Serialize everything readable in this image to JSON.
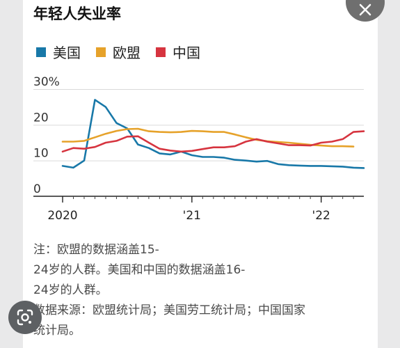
{
  "title": "年轻人失业率",
  "legend": [
    {
      "label": "美国",
      "color": "#1878a8"
    },
    {
      "label": "欧盟",
      "color": "#e6a22a"
    },
    {
      "label": "中国",
      "color": "#d6343f"
    }
  ],
  "notes": {
    "line1": "注：欧盟的数据涵盖15-",
    "line2": "24岁的人群。美国和中国的数据涵盖16-",
    "line3": "24岁的人群。",
    "line4": "数据来源：欧盟统计局；美国劳工统计局；中国国家",
    "line5": "统计局。"
  },
  "icons": {
    "close": "close-icon",
    "lens": "google-lens-icon"
  },
  "chart_data": {
    "type": "line",
    "title": "年轻人失业率",
    "ylim": [
      0,
      30
    ],
    "yticks": [
      {
        "value": 30,
        "label": "30%"
      },
      {
        "value": 20,
        "label": "20"
      },
      {
        "value": 10,
        "label": "10"
      },
      {
        "value": 0,
        "label": "0"
      }
    ],
    "xlim": [
      2020.0,
      2022.33
    ],
    "xticks": [
      {
        "value": 2020.0,
        "label": "2020"
      },
      {
        "value": 2021.0,
        "label": "'21"
      },
      {
        "value": 2022.0,
        "label": "'22"
      }
    ],
    "grid": true,
    "legend_position": "top-left",
    "series": [
      {
        "name": "美国",
        "color": "#1878a8",
        "points": [
          [
            2020.0,
            8.5
          ],
          [
            2020.083,
            8.0
          ],
          [
            2020.167,
            10.0
          ],
          [
            2020.25,
            27.0
          ],
          [
            2020.333,
            25.0
          ],
          [
            2020.417,
            20.5
          ],
          [
            2020.5,
            19.0
          ],
          [
            2020.583,
            14.5
          ],
          [
            2020.667,
            13.5
          ],
          [
            2020.75,
            12.0
          ],
          [
            2020.833,
            11.7
          ],
          [
            2020.917,
            12.5
          ],
          [
            2021.0,
            11.5
          ],
          [
            2021.083,
            11.0
          ],
          [
            2021.167,
            11.0
          ],
          [
            2021.25,
            10.8
          ],
          [
            2021.333,
            10.2
          ],
          [
            2021.417,
            10.0
          ],
          [
            2021.5,
            9.7
          ],
          [
            2021.583,
            9.9
          ],
          [
            2021.667,
            9.0
          ],
          [
            2021.75,
            8.7
          ],
          [
            2021.833,
            8.6
          ],
          [
            2021.917,
            8.5
          ],
          [
            2022.0,
            8.5
          ],
          [
            2022.083,
            8.4
          ],
          [
            2022.167,
            8.3
          ],
          [
            2022.25,
            8.0
          ],
          [
            2022.33,
            7.9
          ]
        ]
      },
      {
        "name": "欧盟",
        "color": "#e6a22a",
        "points": [
          [
            2020.0,
            15.3
          ],
          [
            2020.083,
            15.3
          ],
          [
            2020.167,
            15.5
          ],
          [
            2020.25,
            16.5
          ],
          [
            2020.333,
            17.5
          ],
          [
            2020.417,
            18.3
          ],
          [
            2020.5,
            18.8
          ],
          [
            2020.583,
            18.9
          ],
          [
            2020.667,
            18.2
          ],
          [
            2020.75,
            18.0
          ],
          [
            2020.833,
            17.9
          ],
          [
            2020.917,
            18.0
          ],
          [
            2021.0,
            18.3
          ],
          [
            2021.083,
            18.2
          ],
          [
            2021.167,
            18.0
          ],
          [
            2021.25,
            18.0
          ],
          [
            2021.333,
            17.3
          ],
          [
            2021.417,
            16.5
          ],
          [
            2021.5,
            15.8
          ],
          [
            2021.583,
            15.4
          ],
          [
            2021.667,
            15.2
          ],
          [
            2021.75,
            15.0
          ],
          [
            2021.833,
            14.7
          ],
          [
            2021.917,
            14.4
          ],
          [
            2022.0,
            14.2
          ],
          [
            2022.083,
            14.0
          ],
          [
            2022.167,
            14.0
          ],
          [
            2022.25,
            13.9
          ]
        ]
      },
      {
        "name": "中国",
        "color": "#d6343f",
        "points": [
          [
            2020.0,
            12.5
          ],
          [
            2020.083,
            13.5
          ],
          [
            2020.167,
            13.3
          ],
          [
            2020.25,
            13.8
          ],
          [
            2020.333,
            15.0
          ],
          [
            2020.417,
            15.5
          ],
          [
            2020.5,
            16.7
          ],
          [
            2020.583,
            16.8
          ],
          [
            2020.667,
            15.0
          ],
          [
            2020.75,
            13.3
          ],
          [
            2020.833,
            12.8
          ],
          [
            2020.917,
            12.5
          ],
          [
            2021.0,
            12.7
          ],
          [
            2021.083,
            13.2
          ],
          [
            2021.167,
            13.7
          ],
          [
            2021.25,
            13.7
          ],
          [
            2021.333,
            14.0
          ],
          [
            2021.417,
            15.3
          ],
          [
            2021.5,
            16.0
          ],
          [
            2021.583,
            15.3
          ],
          [
            2021.667,
            14.8
          ],
          [
            2021.75,
            14.3
          ],
          [
            2021.833,
            14.3
          ],
          [
            2021.917,
            14.2
          ],
          [
            2022.0,
            15.0
          ],
          [
            2022.083,
            15.3
          ],
          [
            2022.167,
            16.0
          ],
          [
            2022.25,
            18.0
          ],
          [
            2022.33,
            18.2
          ]
        ]
      }
    ]
  }
}
